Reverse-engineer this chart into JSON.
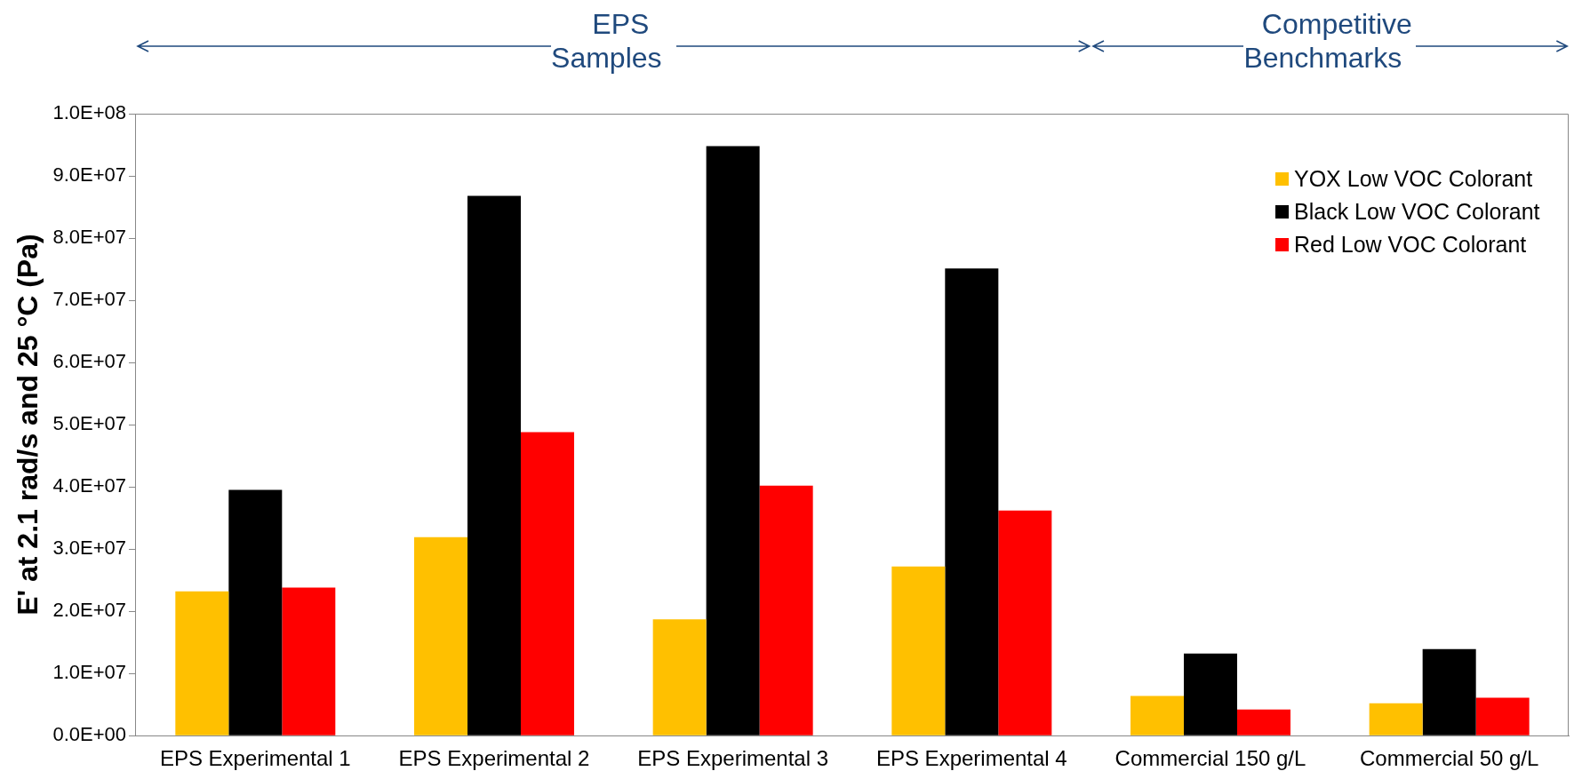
{
  "chart_data": {
    "type": "bar",
    "categories": [
      "EPS Experimental 1",
      "EPS Experimental 2",
      "EPS Experimental 3",
      "EPS Experimental 4",
      "Commercial 150 g/L",
      "Commercial 50 g/L"
    ],
    "series": [
      {
        "name": "YOX Low VOC Colorant",
        "color": "#ffc000",
        "values": [
          23200000,
          31900000,
          18700000,
          27200000,
          6400000,
          5200000
        ]
      },
      {
        "name": "Black Low VOC Colorant",
        "color": "#000000",
        "values": [
          39500000,
          86800000,
          94800000,
          75100000,
          13200000,
          13900000
        ]
      },
      {
        "name": "Red Low VOC Colorant",
        "color": "#ff0000",
        "values": [
          23800000,
          48800000,
          40200000,
          36200000,
          4200000,
          6100000
        ]
      }
    ],
    "ylabel": "E' at 2.1 rad/s and 25 °C (Pa)",
    "ylim": [
      0,
      100000000
    ],
    "yticks": [
      {
        "value": 0,
        "label": "0.0E+00"
      },
      {
        "value": 10000000,
        "label": "1.0E+07"
      },
      {
        "value": 20000000,
        "label": "2.0E+07"
      },
      {
        "value": 30000000,
        "label": "3.0E+07"
      },
      {
        "value": 40000000,
        "label": "4.0E+07"
      },
      {
        "value": 50000000,
        "label": "5.0E+07"
      },
      {
        "value": 60000000,
        "label": "6.0E+07"
      },
      {
        "value": 70000000,
        "label": "7.0E+07"
      },
      {
        "value": 80000000,
        "label": "8.0E+07"
      },
      {
        "value": 90000000,
        "label": "9.0E+07"
      },
      {
        "value": 100000000,
        "label": "1.0E+08"
      }
    ],
    "annotations": [
      "EPS Samples",
      "Competitive Benchmarks"
    ],
    "legend": "top right",
    "grid": false
  }
}
